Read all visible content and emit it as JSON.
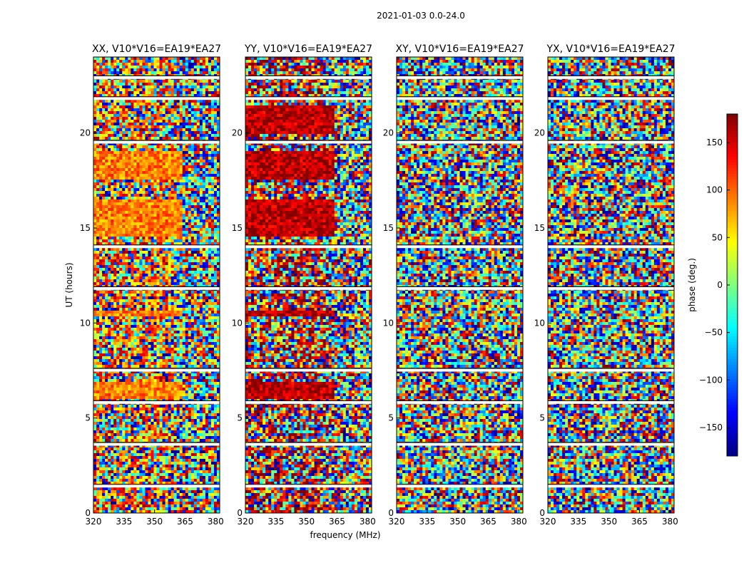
{
  "figure": {
    "suptitle": "2021-01-03 0.0-24.0",
    "xlabel": "frequency (MHz)",
    "ylabel": "UT (hours)"
  },
  "colorbar": {
    "label": "phase (deg.)",
    "ticks": [
      150,
      100,
      50,
      0,
      -50,
      -100,
      -150
    ],
    "tick_labels": [
      "150",
      "100",
      "50",
      "0",
      "−50",
      "−100",
      "−150"
    ],
    "range": [
      -180,
      180
    ],
    "colormap": "jet"
  },
  "colors": {
    "jet": [
      "#00007f",
      "#0000ff",
      "#007fff",
      "#00ffff",
      "#7fff7f",
      "#ffff00",
      "#ff7f00",
      "#ff0000",
      "#7f0000"
    ],
    "flag_band": "#ffffff",
    "dark_band": "#000000"
  },
  "chart_data": {
    "type": "heatmap",
    "title": "2021-01-03 0.0-24.0",
    "xlabel": "frequency (MHz)",
    "ylabel": "UT (hours)",
    "xlim": [
      320,
      382
    ],
    "ylim": [
      0,
      24
    ],
    "xticks": [
      320,
      335,
      350,
      365,
      380
    ],
    "yticks": [
      0,
      5,
      10,
      15,
      20
    ],
    "panels": [
      {
        "title": "XX, V10*V16=EA19*EA27",
        "bias_phase": 90,
        "coherent_bands": [
          [
            6.0,
            6.9
          ],
          [
            10.3,
            10.7
          ],
          [
            14.5,
            16.5
          ],
          [
            17.5,
            19.0
          ]
        ],
        "coherent_fmax": 363
      },
      {
        "title": "YY, V10*V16=EA19*EA27",
        "bias_phase": 160,
        "coherent_bands": [
          [
            6.0,
            6.9
          ],
          [
            10.3,
            10.7
          ],
          [
            14.5,
            16.5
          ],
          [
            17.5,
            19.0
          ],
          [
            20.0,
            21.5
          ]
        ],
        "coherent_fmax": 363
      },
      {
        "title": "XY, V10*V16=EA19*EA27",
        "bias_phase": null,
        "coherent_bands": [],
        "coherent_fmax": null
      },
      {
        "title": "YX, V10*V16=EA19*EA27",
        "bias_phase": null,
        "coherent_bands": [],
        "coherent_fmax": null
      }
    ],
    "flagged_ut_hours": [
      1.4,
      3.6,
      5.8,
      7.5,
      11.8,
      14.0,
      19.5,
      21.8,
      22.9
    ],
    "color_scale": {
      "min": -180,
      "max": 180,
      "label": "phase (deg.)"
    }
  }
}
